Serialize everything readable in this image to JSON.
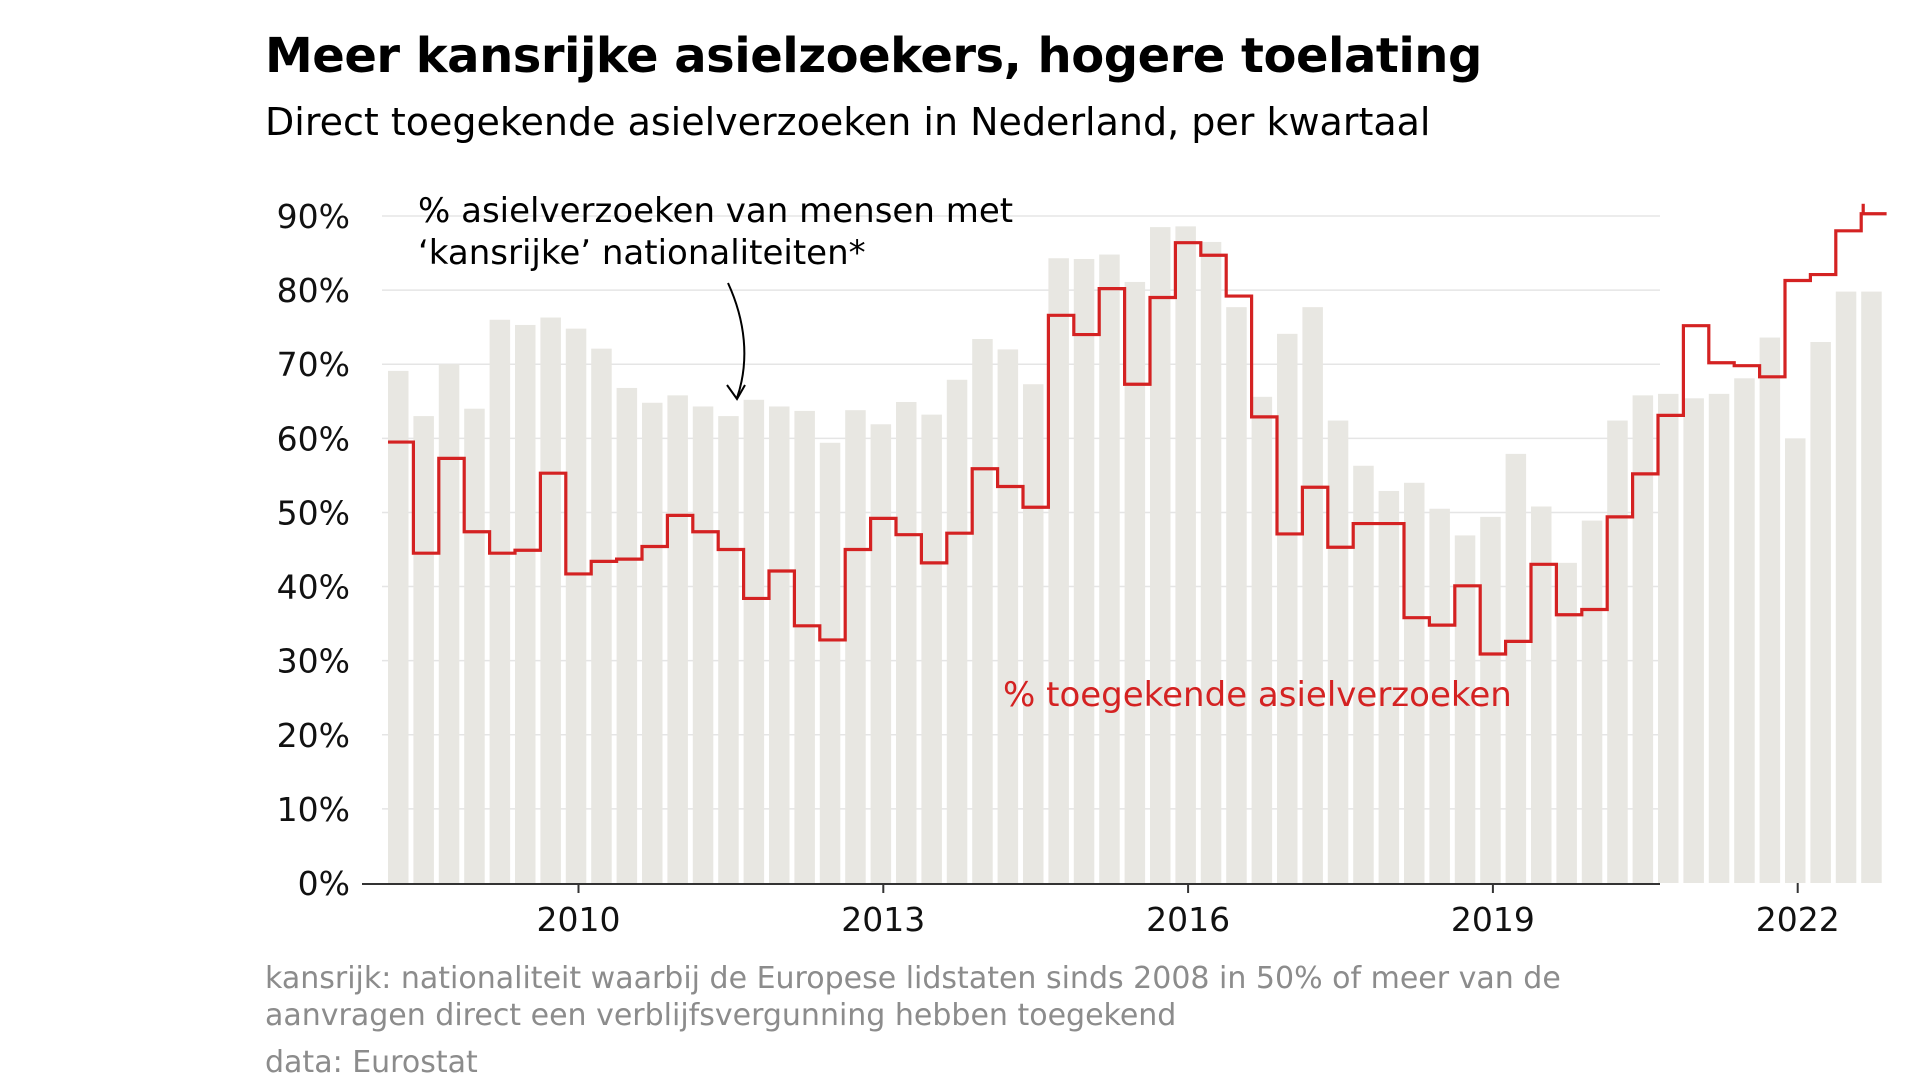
{
  "header": {
    "title": "Meer kansrijke asielzoekers, hogere toelating",
    "subtitle": "Direct toegekende asielverzoeken in Nederland, per kwartaal"
  },
  "footer": {
    "footnote": "kansrijk: nationaliteit waarbij de Europese lidstaten sinds 2008 in 50% of meer van de aanvragen direct een verblijfsvergunning hebben toegekend",
    "source": "data: Eurostat"
  },
  "colors": {
    "bar": "#e8e7e2",
    "line": "#d42222",
    "axis": "#333333",
    "grid": "#e5e5e5"
  },
  "chart_data": {
    "type": "bar",
    "title": "Meer kansrijke asielzoekers, hogere toelating",
    "subtitle": "Direct toegekende asielverzoeken in Nederland, per kwartaal",
    "xlabel": "",
    "ylabel": "",
    "ylim": [
      0,
      90
    ],
    "y_ticks": [
      0,
      10,
      20,
      30,
      40,
      50,
      60,
      70,
      80,
      90
    ],
    "y_tick_labels": [
      "0%",
      "10%",
      "20%",
      "30%",
      "40%",
      "50%",
      "60%",
      "70%",
      "80%",
      "90%"
    ],
    "x_tick_labels": [
      "2010",
      "2013",
      "2016",
      "2019",
      "2022"
    ],
    "x_tick_index": [
      7.5,
      19.5,
      31.5,
      43.5,
      55.5
    ],
    "categories": [
      "2008-Q1",
      "2008-Q2",
      "2008-Q3",
      "2008-Q4",
      "2009-Q1",
      "2009-Q2",
      "2009-Q3",
      "2009-Q4",
      "2010-Q1",
      "2010-Q2",
      "2010-Q3",
      "2010-Q4",
      "2011-Q1",
      "2011-Q2",
      "2011-Q3",
      "2011-Q4",
      "2012-Q1",
      "2012-Q2",
      "2012-Q3",
      "2012-Q4",
      "2013-Q1",
      "2013-Q2",
      "2013-Q3",
      "2013-Q4",
      "2014-Q1",
      "2014-Q2",
      "2014-Q3",
      "2014-Q4",
      "2015-Q1",
      "2015-Q2",
      "2015-Q3",
      "2015-Q4",
      "2016-Q1",
      "2016-Q2",
      "2016-Q3",
      "2016-Q4",
      "2017-Q1",
      "2017-Q2",
      "2017-Q3",
      "2017-Q4",
      "2018-Q1",
      "2018-Q2",
      "2018-Q3",
      "2018-Q4",
      "2019-Q1",
      "2019-Q2",
      "2019-Q3",
      "2019-Q4",
      "2020-Q1",
      "2020-Q2",
      "2020-Q3",
      "2020-Q4",
      "2021-Q1",
      "2021-Q2",
      "2021-Q3",
      "2021-Q4",
      "2022-Q1",
      "2022-Q2",
      "2022-Q3"
    ],
    "series": [
      {
        "name": "% asielverzoeken van mensen met ‘kansrijke’ nationaliteiten*",
        "kind": "bar",
        "values": [
          69.1,
          63.0,
          70.0,
          64.0,
          76.0,
          75.3,
          76.3,
          74.8,
          72.1,
          66.8,
          64.8,
          65.8,
          64.3,
          63.0,
          65.2,
          64.3,
          63.7,
          59.4,
          63.8,
          61.9,
          64.9,
          63.2,
          67.9,
          73.4,
          72.0,
          67.3,
          84.3,
          84.2,
          84.8,
          81.1,
          88.5,
          88.6,
          86.5,
          77.7,
          65.6,
          74.1,
          77.7,
          62.4,
          56.3,
          52.9,
          54.0,
          50.5,
          46.9,
          49.4,
          57.9,
          50.8,
          43.2,
          48.9,
          62.4,
          65.8,
          66.0,
          65.4,
          66.0,
          68.1,
          73.6,
          60.0,
          73.0,
          79.8,
          79.8
        ]
      },
      {
        "name": "% toegekende asielverzoeken",
        "kind": "step-line",
        "values": [
          59.5,
          44.5,
          57.3,
          47.4,
          44.5,
          44.9,
          55.3,
          41.7,
          43.4,
          43.7,
          45.4,
          49.6,
          47.4,
          45.0,
          38.4,
          42.1,
          34.7,
          32.8,
          45.0,
          49.2,
          47.0,
          43.2,
          47.2,
          55.9,
          53.5,
          50.7,
          76.6,
          74.0,
          80.2,
          67.3,
          79.0,
          86.4,
          84.7,
          79.2,
          62.9,
          47.1,
          53.4,
          45.3,
          48.5,
          48.5,
          35.8,
          34.8,
          40.1,
          30.9,
          32.6,
          43.0,
          36.2,
          36.9,
          49.4,
          55.2,
          63.1,
          75.2,
          70.2,
          69.8,
          68.3,
          81.3,
          82.1,
          88.0,
          90.3
        ]
      }
    ],
    "annotations": [
      {
        "text_line1": "% asielverzoeken van mensen met",
        "text_line2": "‘kansrijke’ nationaliteiten*",
        "target_series": 0
      },
      {
        "text": "% toegekende asielverzoeken",
        "target_series": 1
      }
    ],
    "legend": "inline annotations",
    "grid": true
  }
}
